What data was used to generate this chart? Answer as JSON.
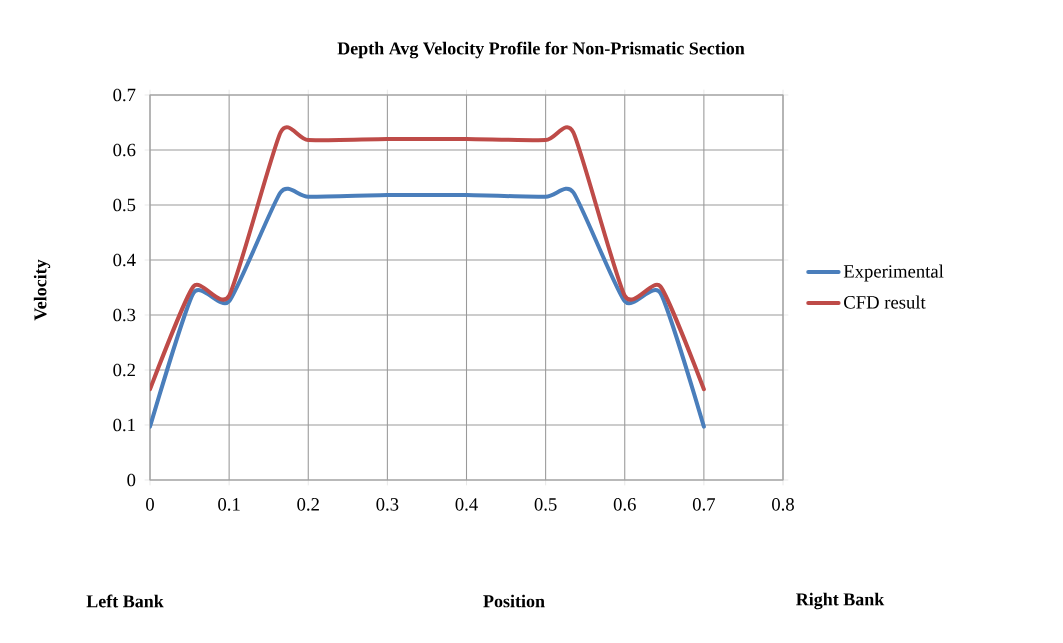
{
  "chart_data": {
    "type": "line",
    "title": "Depth Avg Velocity Profile for Non-Prismatic Section",
    "xlabel": "Position",
    "ylabel": "Velocity",
    "annotations": [
      "Left Bank",
      "Right Bank"
    ],
    "x": [
      0,
      0.055,
      0.1,
      0.165,
      0.2,
      0.3,
      0.4,
      0.5,
      0.535,
      0.6,
      0.645,
      0.7
    ],
    "series": [
      {
        "name": "Experimental",
        "color": "#4a7ebb",
        "values": [
          0.097,
          0.34,
          0.325,
          0.523,
          0.515,
          0.518,
          0.518,
          0.515,
          0.523,
          0.325,
          0.34,
          0.097
        ]
      },
      {
        "name": "CFD result",
        "color": "#be4b48",
        "values": [
          0.165,
          0.352,
          0.335,
          0.632,
          0.618,
          0.62,
          0.62,
          0.618,
          0.632,
          0.335,
          0.352,
          0.165
        ]
      }
    ],
    "xlim": [
      0,
      0.8
    ],
    "ylim": [
      0,
      0.7
    ],
    "xticks": [
      0,
      0.1,
      0.2,
      0.3,
      0.4,
      0.5,
      0.6,
      0.7,
      0.8
    ],
    "yticks": [
      0,
      0.1,
      0.2,
      0.3,
      0.4,
      0.5,
      0.6,
      0.7
    ],
    "grid": true,
    "legend": "right",
    "marker": "none",
    "line_style": "solid"
  }
}
